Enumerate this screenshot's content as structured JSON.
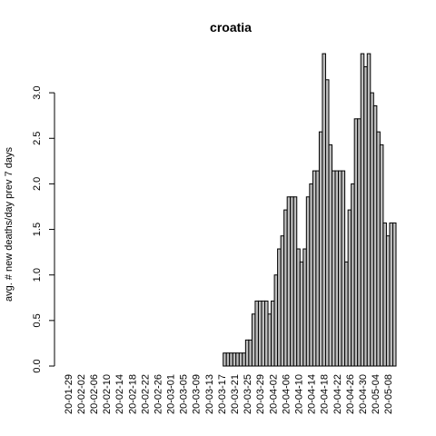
{
  "chart_data": {
    "type": "bar",
    "title": "croatia",
    "xlabel": "",
    "ylabel": "avg. # new deaths/day prev  7  days",
    "ylim": [
      0,
      3.43
    ],
    "yticks": [
      "0.0",
      "0.5",
      "1.0",
      "1.5",
      "2.0",
      "2.5",
      "3.0"
    ],
    "ytick_values": [
      0,
      0.5,
      1.0,
      1.5,
      2.0,
      2.5,
      3.0
    ],
    "xtick_labels": [
      "20-01-29",
      "20-02-02",
      "20-02-06",
      "20-02-10",
      "20-02-14",
      "20-02-18",
      "20-02-22",
      "20-02-26",
      "20-03-01",
      "20-03-05",
      "20-03-09",
      "20-03-13",
      "20-03-17",
      "20-03-21",
      "20-03-25",
      "20-03-29",
      "20-04-02",
      "20-04-06",
      "20-04-10",
      "20-04-14",
      "20-04-18",
      "20-04-22",
      "20-04-26",
      "20-04-30",
      "20-05-04",
      "20-05-08"
    ],
    "xtick_every": 4,
    "categories": [
      "20-01-29",
      "20-01-30",
      "20-01-31",
      "20-02-01",
      "20-02-02",
      "20-02-03",
      "20-02-04",
      "20-02-05",
      "20-02-06",
      "20-02-07",
      "20-02-08",
      "20-02-09",
      "20-02-10",
      "20-02-11",
      "20-02-12",
      "20-02-13",
      "20-02-14",
      "20-02-15",
      "20-02-16",
      "20-02-17",
      "20-02-18",
      "20-02-19",
      "20-02-20",
      "20-02-21",
      "20-02-22",
      "20-02-23",
      "20-02-24",
      "20-02-25",
      "20-02-26",
      "20-02-27",
      "20-02-28",
      "20-02-29",
      "20-03-01",
      "20-03-02",
      "20-03-03",
      "20-03-04",
      "20-03-05",
      "20-03-06",
      "20-03-07",
      "20-03-08",
      "20-03-09",
      "20-03-10",
      "20-03-11",
      "20-03-12",
      "20-03-13",
      "20-03-14",
      "20-03-15",
      "20-03-16",
      "20-03-17",
      "20-03-18",
      "20-03-19",
      "20-03-20",
      "20-03-21",
      "20-03-22",
      "20-03-23",
      "20-03-24",
      "20-03-25",
      "20-03-26",
      "20-03-27",
      "20-03-28",
      "20-03-29",
      "20-03-30",
      "20-03-31",
      "20-04-01",
      "20-04-02",
      "20-04-03",
      "20-04-04",
      "20-04-05",
      "20-04-06",
      "20-04-07",
      "20-04-08",
      "20-04-09",
      "20-04-10",
      "20-04-11",
      "20-04-12",
      "20-04-13",
      "20-04-14",
      "20-04-15",
      "20-04-16",
      "20-04-17",
      "20-04-18",
      "20-04-19",
      "20-04-20",
      "20-04-21",
      "20-04-22",
      "20-04-23",
      "20-04-24",
      "20-04-25",
      "20-04-26",
      "20-04-27",
      "20-04-28",
      "20-04-29",
      "20-04-30",
      "20-05-01",
      "20-05-02",
      "20-05-03",
      "20-05-04",
      "20-05-05",
      "20-05-06",
      "20-05-07",
      "20-05-08",
      "20-05-09",
      "20-05-10"
    ],
    "values": [
      0,
      0,
      0,
      0,
      0,
      0,
      0,
      0,
      0,
      0,
      0,
      0,
      0,
      0,
      0,
      0,
      0,
      0,
      0,
      0,
      0,
      0,
      0,
      0,
      0,
      0,
      0,
      0,
      0,
      0,
      0,
      0,
      0,
      0,
      0,
      0,
      0,
      0,
      0,
      0,
      0,
      0,
      0,
      0,
      0,
      0,
      0,
      0,
      0,
      0.143,
      0.143,
      0.143,
      0.143,
      0.143,
      0.143,
      0.143,
      0.286,
      0.286,
      0.571,
      0.714,
      0.714,
      0.714,
      0.714,
      0.571,
      0.714,
      1.0,
      1.286,
      1.429,
      1.714,
      1.857,
      1.857,
      1.857,
      1.286,
      1.143,
      1.286,
      1.857,
      2.0,
      2.143,
      2.143,
      2.571,
      3.429,
      3.143,
      2.429,
      2.143,
      2.143,
      2.143,
      2.143,
      1.143,
      1.714,
      2.0,
      2.714,
      2.714,
      3.429,
      3.286,
      3.429,
      3.0,
      2.857,
      2.571,
      2.429,
      1.571,
      1.429,
      1.571,
      1.571
    ]
  }
}
